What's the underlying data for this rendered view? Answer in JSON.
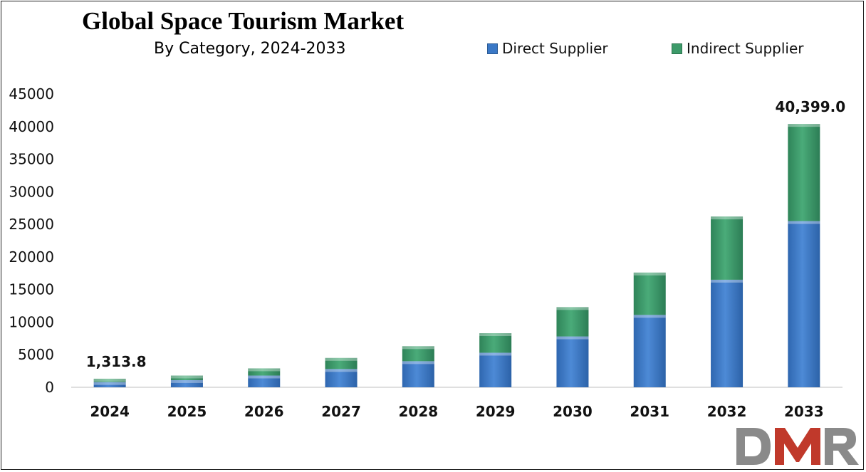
{
  "chart_data": {
    "type": "bar",
    "stacked": true,
    "title": "Global Space Tourism Market",
    "subtitle": "By Category, 2024-2033",
    "categories": [
      "2024",
      "2025",
      "2026",
      "2027",
      "2028",
      "2029",
      "2030",
      "2031",
      "2032",
      "2033"
    ],
    "series": [
      {
        "name": "Direct Supplier",
        "color": "#3a78c6",
        "values": [
          800,
          1100,
          1800,
          2800,
          4000,
          5300,
          7800,
          11100,
          16500,
          25500
        ]
      },
      {
        "name": "Indirect Supplier",
        "color": "#3c9a69",
        "values": [
          514,
          700,
          1100,
          1700,
          2300,
          3000,
          4500,
          6500,
          9700,
          14899
        ]
      }
    ],
    "data_labels": [
      {
        "category": "2024",
        "text": "1,313.8"
      },
      {
        "category": "2033",
        "text": "40,399.0"
      }
    ],
    "ylim": [
      0,
      45000
    ],
    "yticks": [
      "0",
      "5000",
      "10000",
      "15000",
      "20000",
      "25000",
      "30000",
      "35000",
      "40000",
      "45000"
    ],
    "legend_position": "top-right",
    "grid": false,
    "xlabel": "",
    "ylabel": ""
  },
  "logo": {
    "text": "DMR",
    "colors": [
      "#8a8a8a",
      "#c0392b"
    ]
  }
}
